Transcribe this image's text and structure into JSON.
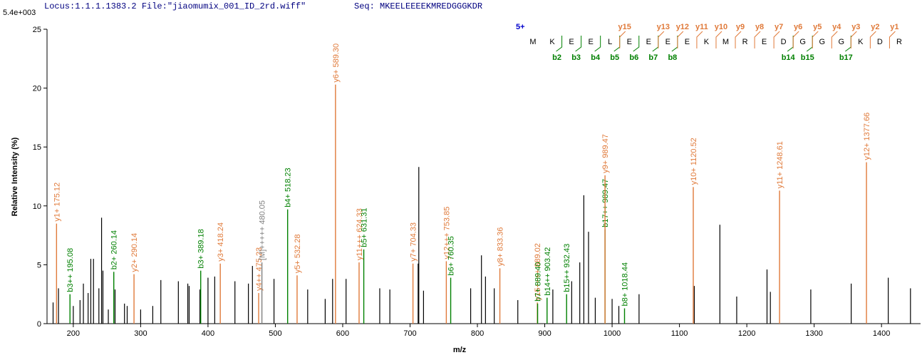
{
  "chart_data": {
    "type": "spectrum",
    "header_locus": "Locus:1.1.1.1383.2 File:\"jiaomumix_001_ID_2rd.wiff\"",
    "header_seq": "Seq: MKEELEEEEKMREDGGGKDR",
    "scale_label": "5.4e+003",
    "x_label": "m/z",
    "y_label": "Relative Intensity (%)",
    "xlim": [
      161,
      1458
    ],
    "xticks": [
      200,
      300,
      400,
      500,
      600,
      700,
      800,
      900,
      1000,
      1100,
      1200,
      1300,
      1400
    ],
    "ylim": [
      0,
      25
    ],
    "yticks": [
      0,
      5,
      10,
      15,
      20,
      25
    ],
    "charge": "5+",
    "residues": [
      "M",
      "K",
      "E",
      "E",
      "L",
      "E",
      "E",
      "E",
      "E",
      "K",
      "M",
      "R",
      "E",
      "D",
      "G",
      "G",
      "G",
      "K",
      "D",
      "R"
    ],
    "b_ions": [
      "b2",
      "b3",
      "b4",
      "b5",
      "b6",
      "b7",
      "b8",
      "b14",
      "b15",
      "b17"
    ],
    "y_ions": [
      "y15",
      "y13",
      "y12",
      "y11",
      "y10",
      "y9",
      "y8",
      "y7",
      "y6",
      "y5",
      "y4",
      "y3",
      "y2",
      "y1"
    ],
    "b_color": "#008000",
    "y_color": "#e07a3a",
    "peak_color": "#000000",
    "ions": [
      {
        "label": "y1+ 175.12",
        "mz": 175.12,
        "intensity": 8.5,
        "color": "#e07a3a"
      },
      {
        "label": "b3++ 195.08",
        "mz": 195.08,
        "intensity": 2.5,
        "color": "#008000"
      },
      {
        "label": "b2+ 260.14",
        "mz": 260.14,
        "intensity": 4.4,
        "color": "#008000"
      },
      {
        "label": "y2+ 290.14",
        "mz": 290.14,
        "intensity": 4.2,
        "color": "#e07a3a"
      },
      {
        "label": "b3+ 389.18",
        "mz": 389.18,
        "intensity": 4.5,
        "color": "#008000"
      },
      {
        "label": "y3+ 418.24",
        "mz": 418.24,
        "intensity": 5.1,
        "color": "#e07a3a"
      },
      {
        "label": "y4++ 475.23",
        "mz": 475.23,
        "intensity": 2.6,
        "color": "#e07a3a"
      },
      {
        "label": "[M]+++++ 480.05",
        "mz": 480.05,
        "intensity": 5.2,
        "color": "#808080"
      },
      {
        "label": "b4+ 518.23",
        "mz": 518.23,
        "intensity": 9.7,
        "color": "#008000"
      },
      {
        "label": "y5+ 532.28",
        "mz": 532.28,
        "intensity": 4.1,
        "color": "#e07a3a"
      },
      {
        "label": "y6+ 589.30",
        "mz": 589.3,
        "intensity": 20.3,
        "color": "#e07a3a"
      },
      {
        "label": "y11+++ 624.33",
        "mz": 624.33,
        "intensity": 5.2,
        "color": "#e07a3a"
      },
      {
        "label": "b5+ 631.31",
        "mz": 631.31,
        "intensity": 6.3,
        "color": "#008000"
      },
      {
        "label": "y7+ 704.33",
        "mz": 704.33,
        "intensity": 5.1,
        "color": "#e07a3a"
      },
      {
        "label": "y12+++ 753.85",
        "mz": 753.85,
        "intensity": 5.3,
        "color": "#e07a3a"
      },
      {
        "label": "b6+ 760.35",
        "mz": 760.35,
        "intensity": 3.9,
        "color": "#008000"
      },
      {
        "label": "y8+ 833.36",
        "mz": 833.36,
        "intensity": 4.7,
        "color": "#e07a3a"
      },
      {
        "label": "y15++++ 889.02",
        "mz": 889.02,
        "intensity": 1.8,
        "color": "#e07a3a"
      },
      {
        "label": "b7+ 889.40",
        "mz": 889.4,
        "intensity": 1.7,
        "color": "#008000"
      },
      {
        "label": "b14++ 903.42",
        "mz": 903.42,
        "intensity": 2.2,
        "color": "#008000"
      },
      {
        "label": "b15++ 932.43",
        "mz": 932.43,
        "intensity": 2.5,
        "color": "#008000"
      },
      {
        "label": "b17++ 989.47",
        "mz": 989.47,
        "intensity": 8.0,
        "color": "#008000"
      },
      {
        "label": "y9+ 989.47",
        "mz": 989.47,
        "intensity": 12.6,
        "color": "#e07a3a"
      },
      {
        "label": "b8+ 1018.44",
        "mz": 1018.44,
        "intensity": 1.3,
        "color": "#008000"
      },
      {
        "label": "y10+ 1120.52",
        "mz": 1120.52,
        "intensity": 11.6,
        "color": "#e07a3a"
      },
      {
        "label": "y11+ 1248.61",
        "mz": 1248.61,
        "intensity": 11.3,
        "color": "#e07a3a"
      },
      {
        "label": "y12+ 1377.66",
        "mz": 1377.66,
        "intensity": 13.7,
        "color": "#e07a3a"
      }
    ],
    "peaks": {
      "x": [
        170,
        178,
        200,
        210,
        215,
        222,
        226,
        230,
        238,
        242,
        244,
        252,
        262,
        276,
        280,
        300,
        318,
        330,
        356,
        370,
        372,
        388,
        400,
        410,
        440,
        460,
        466,
        498,
        548,
        574,
        585,
        605,
        655,
        670,
        712,
        713,
        720,
        790,
        806,
        812,
        825,
        860,
        912,
        940,
        952,
        958,
        965,
        975,
        1000,
        1010,
        1040,
        1122,
        1160,
        1185,
        1230,
        1235,
        1295,
        1355,
        1410,
        1443
      ],
      "values": [
        1.8,
        3,
        1.5,
        2,
        3.4,
        2.6,
        5.5,
        5.5,
        3,
        9,
        4.5,
        1.2,
        2.9,
        1.7,
        1.5,
        1.2,
        1.5,
        3.7,
        3.6,
        3.4,
        3.2,
        2.9,
        3.9,
        4,
        3.6,
        3.4,
        4.9,
        3.8,
        2.9,
        2.1,
        3.8,
        3.8,
        3,
        2.9,
        5.1,
        13.3,
        2.8,
        3,
        5.8,
        4,
        3,
        2,
        2.9,
        3.6,
        5.2,
        10.9,
        7.8,
        2.2,
        2.1,
        1.5,
        2.5,
        3.2,
        8.4,
        2.3,
        4.6,
        2.7,
        2.9,
        3.4,
        3.9,
        3
      ]
    }
  }
}
